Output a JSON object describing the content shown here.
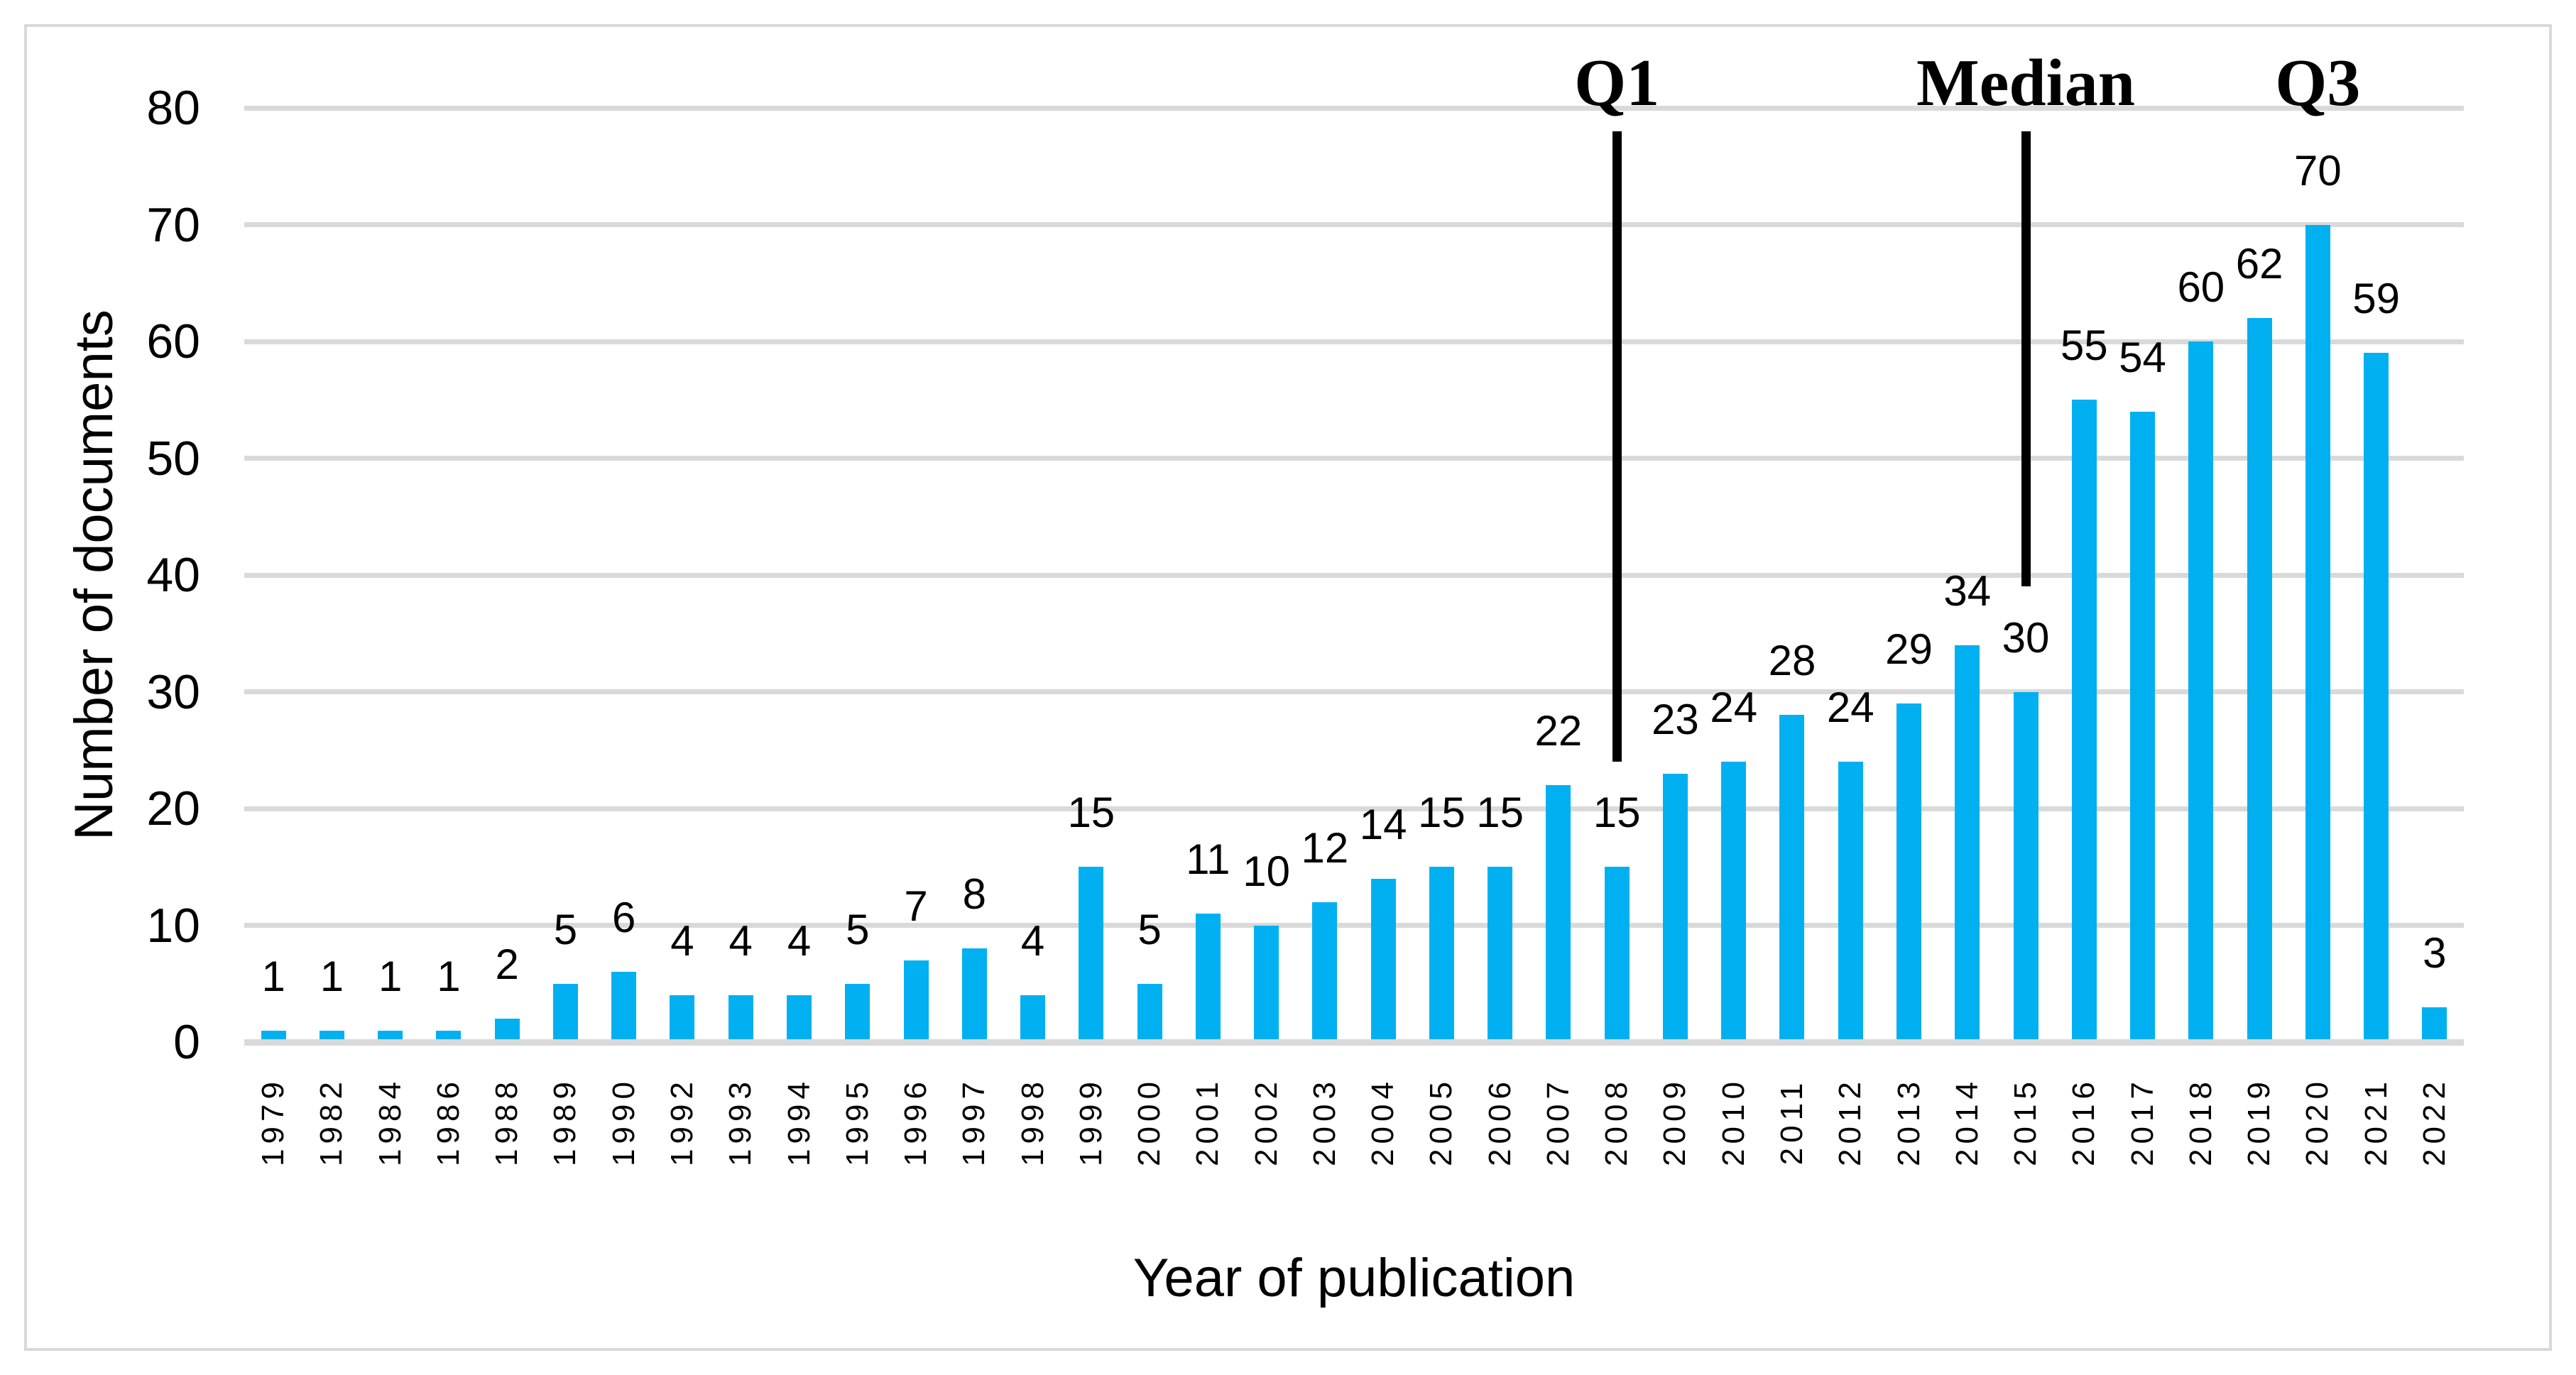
{
  "chart_data": {
    "type": "bar",
    "xlabel": "Year of publication",
    "ylabel": "Number of documents",
    "categories": [
      "1979",
      "1982",
      "1984",
      "1986",
      "1988",
      "1989",
      "1990",
      "1992",
      "1993",
      "1994",
      "1995",
      "1996",
      "1997",
      "1998",
      "1999",
      "2000",
      "2001",
      "2002",
      "2003",
      "2004",
      "2005",
      "2006",
      "2007",
      "2008",
      "2009",
      "2010",
      "2011",
      "2012",
      "2013",
      "2014",
      "2015",
      "2016",
      "2017",
      "2018",
      "2019",
      "2020",
      "2021",
      "2022"
    ],
    "values": [
      1,
      1,
      1,
      1,
      2,
      5,
      6,
      4,
      4,
      4,
      5,
      7,
      8,
      4,
      15,
      5,
      11,
      10,
      12,
      14,
      15,
      15,
      22,
      15,
      23,
      24,
      28,
      24,
      29,
      34,
      30,
      55,
      54,
      60,
      62,
      70,
      59,
      3
    ],
    "ylim": [
      0,
      80
    ],
    "yticks": [
      0,
      10,
      20,
      30,
      40,
      50,
      60,
      70,
      80
    ],
    "grid": true,
    "legend": null,
    "bar_color": "#00b0f0",
    "gridline_color": "#d9d9d9",
    "annotations": [
      {
        "label": "Q1",
        "category": "2008",
        "has_line": true,
        "line_top_value": 78,
        "line_bottom_value": 24
      },
      {
        "label": "Median",
        "category": "2015",
        "has_line": true,
        "line_top_value": 78,
        "line_bottom_value": 39
      },
      {
        "label": "Q3",
        "category": "2020",
        "has_line": false,
        "line_top_value": null,
        "line_bottom_value": null
      }
    ]
  }
}
